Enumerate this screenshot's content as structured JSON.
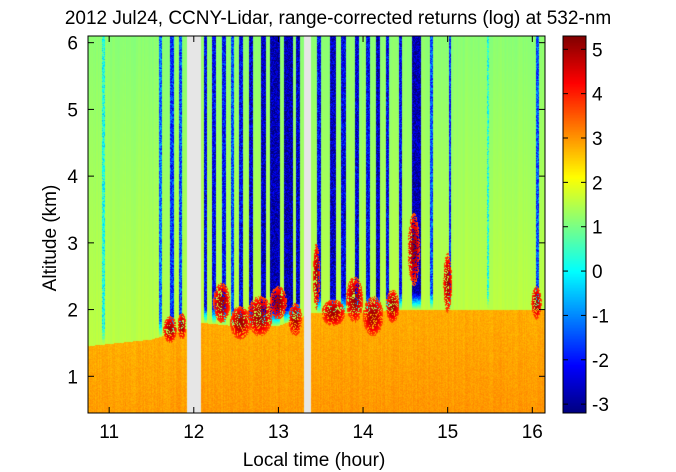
{
  "chart_data": {
    "type": "heatmap",
    "title": "2012 Jul24, CCNY-Lidar, range-corrected returns (log) at 532-nm",
    "xlabel": "Local time (hour)",
    "ylabel": "Altitude (km)",
    "xlim": [
      10.75,
      16.15
    ],
    "ylim": [
      0.45,
      6.1
    ],
    "xticks": [
      "11",
      "12",
      "13",
      "14",
      "15",
      "16"
    ],
    "yticks": [
      "1",
      "2",
      "3",
      "4",
      "5",
      "6"
    ],
    "colorbar": {
      "range": [
        -3.2,
        5.3
      ],
      "ticks": [
        "5",
        "4",
        "3",
        "2",
        "1",
        "0",
        "-1",
        "-2",
        "-3"
      ],
      "colormap": "jet"
    },
    "no_data_gaps": [
      [
        11.92,
        12.08
      ],
      [
        13.3,
        13.38
      ]
    ],
    "layers": {
      "boundary_layer_top_km": [
        [
          10.75,
          1.45
        ],
        [
          11.5,
          1.55
        ],
        [
          11.9,
          1.7
        ],
        [
          12.1,
          1.8
        ],
        [
          12.5,
          1.75
        ],
        [
          13.0,
          1.75
        ],
        [
          13.3,
          1.9
        ],
        [
          13.4,
          1.95
        ],
        [
          14.0,
          1.95
        ],
        [
          14.5,
          2.0
        ],
        [
          15.0,
          2.0
        ],
        [
          15.5,
          2.0
        ],
        [
          16.15,
          2.0
        ]
      ],
      "upper_background_level": 1.2,
      "lower_background_level": 2.8
    },
    "clear_profiles": [
      {
        "t": 10.93,
        "w": 0.03,
        "level": 0.2
      },
      {
        "t": 11.61,
        "w": 0.04,
        "level": -1.2
      },
      {
        "t": 11.74,
        "w": 0.05,
        "level": -1.8
      },
      {
        "t": 11.84,
        "w": 0.03,
        "level": -1.5
      },
      {
        "t": 12.14,
        "w": 0.04,
        "level": -2.2
      },
      {
        "t": 12.24,
        "w": 0.04,
        "level": -2.2
      },
      {
        "t": 12.36,
        "w": 0.05,
        "level": -2.0
      },
      {
        "t": 12.46,
        "w": 0.04,
        "level": -1.5
      },
      {
        "t": 12.56,
        "w": 0.04,
        "level": -2.2
      },
      {
        "t": 12.68,
        "w": 0.05,
        "level": -2.5
      },
      {
        "t": 12.82,
        "w": 0.06,
        "level": -2.6
      },
      {
        "t": 12.96,
        "w": 0.12,
        "level": -2.8
      },
      {
        "t": 13.12,
        "w": 0.1,
        "level": -2.8
      },
      {
        "t": 13.23,
        "w": 0.05,
        "level": -2.5
      },
      {
        "t": 13.48,
        "w": 0.05,
        "level": -2.2
      },
      {
        "t": 13.64,
        "w": 0.07,
        "level": -2.6
      },
      {
        "t": 13.77,
        "w": 0.05,
        "level": -2.3
      },
      {
        "t": 13.93,
        "w": 0.05,
        "level": -2.4
      },
      {
        "t": 14.06,
        "w": 0.04,
        "level": -2.2
      },
      {
        "t": 14.18,
        "w": 0.05,
        "level": -2.6
      },
      {
        "t": 14.29,
        "w": 0.04,
        "level": -2.2
      },
      {
        "t": 14.44,
        "w": 0.04,
        "level": -2.2
      },
      {
        "t": 14.63,
        "w": 0.1,
        "level": -2.8
      },
      {
        "t": 14.81,
        "w": 0.03,
        "level": -1.5
      },
      {
        "t": 15.03,
        "w": 0.03,
        "level": -1.8
      },
      {
        "t": 15.48,
        "w": 0.02,
        "level": 0.3
      },
      {
        "t": 16.06,
        "w": 0.03,
        "level": -1.5
      }
    ],
    "aerosol_plumes": [
      {
        "t": 11.72,
        "z": 1.7,
        "w": 0.08,
        "h": 0.2
      },
      {
        "t": 11.86,
        "z": 1.75,
        "w": 0.05,
        "h": 0.2
      },
      {
        "t": 12.33,
        "z": 2.1,
        "w": 0.1,
        "h": 0.3
      },
      {
        "t": 12.55,
        "z": 1.8,
        "w": 0.12,
        "h": 0.25
      },
      {
        "t": 12.78,
        "z": 1.9,
        "w": 0.15,
        "h": 0.3
      },
      {
        "t": 13.0,
        "z": 2.1,
        "w": 0.1,
        "h": 0.25
      },
      {
        "t": 13.2,
        "z": 1.85,
        "w": 0.08,
        "h": 0.25
      },
      {
        "t": 13.45,
        "z": 2.5,
        "w": 0.04,
        "h": 0.5
      },
      {
        "t": 13.65,
        "z": 1.95,
        "w": 0.14,
        "h": 0.2
      },
      {
        "t": 13.9,
        "z": 2.15,
        "w": 0.1,
        "h": 0.35
      },
      {
        "t": 14.12,
        "z": 1.9,
        "w": 0.12,
        "h": 0.3
      },
      {
        "t": 14.35,
        "z": 2.05,
        "w": 0.08,
        "h": 0.25
      },
      {
        "t": 14.6,
        "z": 2.9,
        "w": 0.07,
        "h": 0.55
      },
      {
        "t": 15.0,
        "z": 2.4,
        "w": 0.05,
        "h": 0.45
      },
      {
        "t": 16.05,
        "z": 2.1,
        "w": 0.06,
        "h": 0.25
      }
    ]
  }
}
